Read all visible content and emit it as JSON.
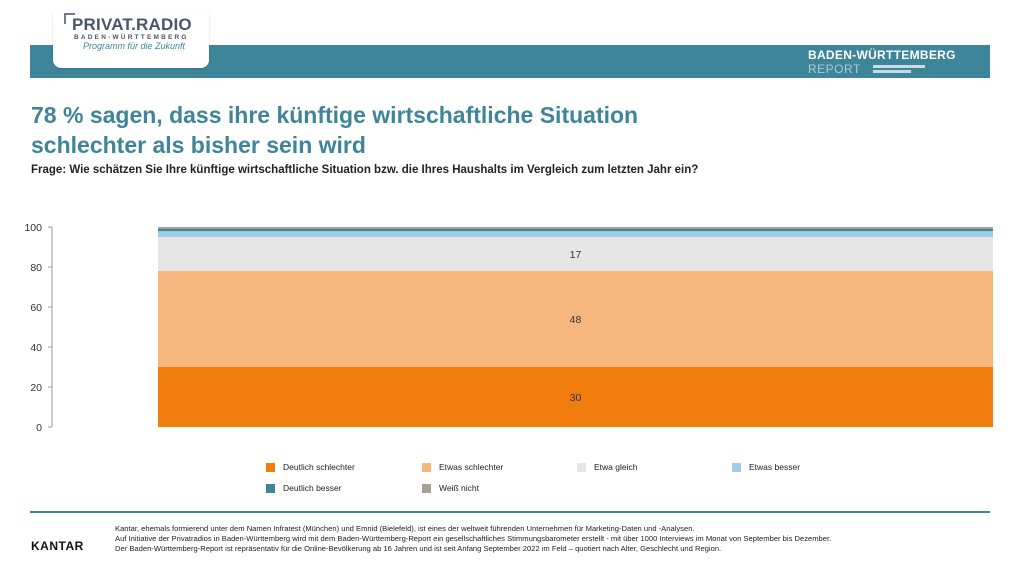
{
  "brand": {
    "logo_title": "PRIVAT.RADIO",
    "logo_sub": "BADEN-WÜRTTEMBERG",
    "logo_tagline": "Programm für die Zukunft",
    "report_title": "BADEN-WÜRTTEMBERG",
    "report_sub": "REPORT"
  },
  "colors": {
    "accent": "#3e8599",
    "deutlich_schlechter": "#f07d0e",
    "etwas_schlechter": "#f6b77e",
    "etwa_gleich": "#e6e6e6",
    "etwas_besser": "#9fcbe4",
    "deutlich_besser": "#3e8599",
    "weiss_nicht": "#a6a394"
  },
  "headline_line1": "78 % sagen, dass ihre künftige wirtschaftliche Situation",
  "headline_line2": "schlechter als bisher sein wird",
  "question": "Frage: Wie schätzen Sie Ihre künftige wirtschaftliche Situation bzw. die Ihres Haushalts im Vergleich zum letzten Jahr ein?",
  "chart_data": {
    "type": "bar",
    "stacked": true,
    "categories": [
      ""
    ],
    "ylim": [
      0,
      100
    ],
    "yticks": [
      0,
      20,
      40,
      60,
      80,
      100
    ],
    "series": [
      {
        "name": "Deutlich schlechter",
        "values": [
          30
        ],
        "label": "30"
      },
      {
        "name": "Etwas schlechter",
        "values": [
          48
        ],
        "label": "48"
      },
      {
        "name": "Etwa gleich",
        "values": [
          17
        ],
        "label": "17"
      },
      {
        "name": "Etwas besser",
        "values": [
          3
        ],
        "label": ""
      },
      {
        "name": "Deutlich besser",
        "values": [
          1
        ],
        "label": ""
      },
      {
        "name": "Weiß nicht",
        "values": [
          1
        ],
        "label": ""
      }
    ],
    "legend_position": "bottom",
    "grid": false
  },
  "footer": {
    "logo": "KANTAR",
    "line1": "Kantar, ehemals formierend unter dem Namen Infratest (München) und Emnid (Bielefeld), ist eines der weltweit führenden Unternehmen für Marketing-Daten und -Analysen.",
    "line2": "Auf Initiative der Privatradios in Baden-Württemberg wird mit dem Baden-Württemberg-Report ein gesellschaftliches Stimmungsbarometer erstellt - mit über 1000 Interviews im Monat von September bis Dezember.",
    "line3": "Der Baden-Württemberg-Report ist repräsentativ für die Online-Bevölkerung ab 16 Jahren und ist seit Anfang September 2022 im Feld – quotiert nach Alter, Geschlecht und Region."
  }
}
